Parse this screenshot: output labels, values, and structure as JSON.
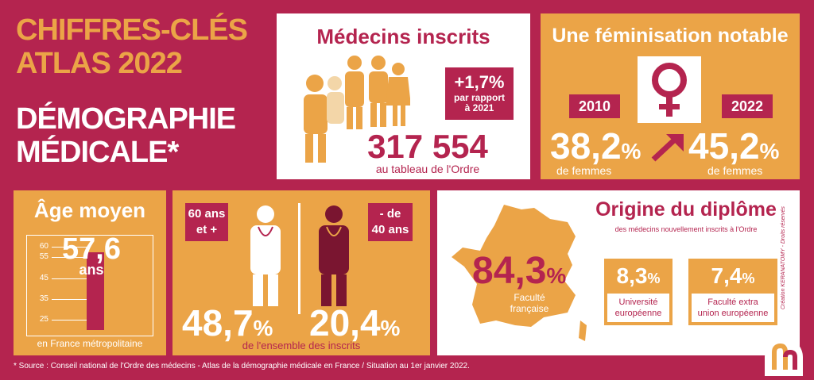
{
  "title": {
    "line1": "CHIFFRES-CLÉS",
    "line2": "ATLAS 2022",
    "line3": "DÉMOGRAPHIE",
    "line4": "MÉDICALE*"
  },
  "medecins": {
    "heading": "Médecins inscrits",
    "growth": "+1,7%",
    "growth_sub1": "par rapport",
    "growth_sub2": "à 2021",
    "count": "317 554",
    "count_sub": "au tableau de l'Ordre"
  },
  "feminisation": {
    "heading": "Une féminisation notable",
    "year1": "2010",
    "year2": "2022",
    "pct1": "38,2",
    "pct2": "45,2",
    "pct_sign": "%",
    "sub1": "de femmes",
    "sub2": "de femmes",
    "icon": "female-symbol-icon"
  },
  "age": {
    "heading": "Âge moyen",
    "value": "57,6",
    "unit": "ans",
    "ticks": [
      "60",
      "55",
      "45",
      "35",
      "25"
    ],
    "bar_value": 57.6,
    "scale_min": 20,
    "scale_max": 62,
    "footer": "en France métropolitaine"
  },
  "ages_split": {
    "label_old_1": "60 ans",
    "label_old_2": "et +",
    "label_young_1": "- de",
    "label_young_2": "40 ans",
    "pct_old": "48,7",
    "pct_young": "20,4",
    "pct_sign": "%",
    "footer": "de l'ensemble des inscrits"
  },
  "origine": {
    "heading": "Origine du diplôme",
    "subheading": "des médecins nouvellement inscrits à l'Ordre",
    "france_pct": "84,3",
    "pct_sign": "%",
    "france_label1": "Faculté",
    "france_label2": "française",
    "eu_pct": "8,3",
    "eu_label1": "Université",
    "eu_label2": "européenne",
    "noneu_pct": "7,4",
    "noneu_label1": "Faculté extra",
    "noneu_label2": "union européenne",
    "credit": "Création KERANATOMY - Droits réservés"
  },
  "source": "* Source : Conseil national de l'Ordre des médecins - Atlas de la démographie médicale en France / Situation au 1er janvier 2022.",
  "colors": {
    "crimson": "#b4244f",
    "orange": "#eba447",
    "white": "#ffffff",
    "dark_maroon": "#7a1530"
  }
}
